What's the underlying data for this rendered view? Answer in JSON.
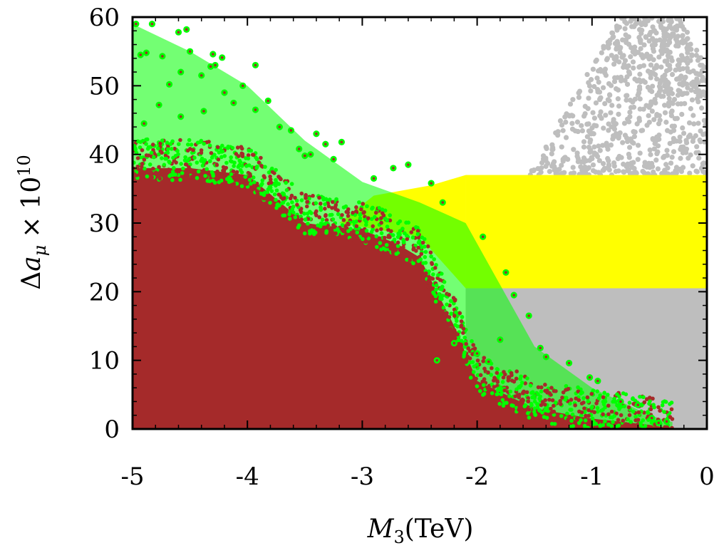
{
  "chart_data": {
    "type": "scatter",
    "title": "",
    "xlabel": {
      "symbol": "M",
      "subscript": "3",
      "unit": "(TeV)"
    },
    "ylabel": {
      "prefix": "Δ",
      "symbol": "a",
      "subscript": "μ",
      "times": "×",
      "base": "10",
      "exponent": "10"
    },
    "xlim": [
      -5,
      0
    ],
    "ylim": [
      0,
      60
    ],
    "x_ticks": [
      -5,
      -4,
      -3,
      -2,
      -1,
      0
    ],
    "x_tick_labels": [
      "-5",
      "-4",
      "-3",
      "-2",
      "-1",
      "0"
    ],
    "y_ticks": [
      0,
      10,
      20,
      30,
      40,
      50,
      60
    ],
    "y_tick_labels": [
      "0",
      "10",
      "20",
      "30",
      "40",
      "50",
      "60"
    ],
    "grid": false,
    "legend": "none",
    "series": [
      {
        "name": "gray",
        "color": "#bebebe",
        "description_regions": [
          {
            "x_range": [
              -2.1,
              0
            ],
            "y_range": [
              0,
              20.5
            ]
          },
          {
            "x_center": -0.5,
            "y_range": [
              37,
              60
            ]
          }
        ]
      },
      {
        "name": "yellow",
        "color": "#ffff00",
        "description_regions": [
          {
            "x_range": [
              -2.1,
              0
            ],
            "y_range": [
              20.5,
              37
            ]
          }
        ]
      },
      {
        "name": "green",
        "color": "#00ff00",
        "upper_envelope": [
          [
            -5,
            59
          ],
          [
            -4.5,
            55
          ],
          [
            -4,
            50
          ],
          [
            -3.5,
            42
          ],
          [
            -3,
            36
          ],
          [
            -2.5,
            33
          ],
          [
            -2.1,
            30
          ],
          [
            -1.5,
            12
          ],
          [
            -1,
            6
          ],
          [
            -0.5,
            2
          ],
          [
            -0.3,
            1
          ]
        ]
      },
      {
        "name": "brown",
        "color": "#a52a2a",
        "upper_envelope": [
          [
            -5,
            38
          ],
          [
            -4.5,
            38
          ],
          [
            -4,
            37
          ],
          [
            -3.5,
            30
          ],
          [
            -3,
            29
          ],
          [
            -2.7,
            27
          ],
          [
            -2.5,
            25
          ],
          [
            -2.2,
            15
          ],
          [
            -2,
            7
          ],
          [
            -1.5,
            3
          ],
          [
            -1,
            1.5
          ],
          [
            -0.5,
            0.6
          ],
          [
            -0.35,
            0.2
          ]
        ]
      }
    ],
    "highlight_points": [
      [
        -4.97,
        59.0
      ],
      [
        -4.83,
        59.0
      ],
      [
        -4.6,
        57.8
      ],
      [
        -4.53,
        58.2
      ],
      [
        -4.93,
        54.5
      ],
      [
        -4.88,
        54.8
      ],
      [
        -4.74,
        54.3
      ],
      [
        -4.5,
        55.0
      ],
      [
        -4.3,
        54.6
      ],
      [
        -4.22,
        54.1
      ],
      [
        -4.28,
        53.0
      ],
      [
        -4.58,
        52.0
      ],
      [
        -4.68,
        50.2
      ],
      [
        -4.4,
        51.5
      ],
      [
        -4.32,
        52.8
      ],
      [
        -3.93,
        53.0
      ],
      [
        -4.2,
        49.0
      ],
      [
        -4.12,
        47.5
      ],
      [
        -4.04,
        50.0
      ],
      [
        -3.82,
        47.8
      ],
      [
        -3.93,
        46.5
      ],
      [
        -4.38,
        46.3
      ],
      [
        -4.58,
        45.5
      ],
      [
        -4.77,
        47.2
      ],
      [
        -4.9,
        44.5
      ],
      [
        -3.72,
        44.0
      ],
      [
        -3.62,
        43.5
      ],
      [
        -3.4,
        43.0
      ],
      [
        -3.55,
        40.8
      ],
      [
        -3.45,
        40.0
      ],
      [
        -3.32,
        41.5
      ],
      [
        -3.18,
        41.8
      ],
      [
        -3.25,
        39.3
      ],
      [
        -3.5,
        39.8
      ],
      [
        -2.73,
        38.0
      ],
      [
        -2.6,
        38.5
      ],
      [
        -2.9,
        36.5
      ],
      [
        -2.4,
        35.8
      ],
      [
        -2.3,
        33.0
      ],
      [
        -1.95,
        28.0
      ],
      [
        -1.75,
        22.8
      ],
      [
        -1.55,
        16.5
      ],
      [
        -1.68,
        19.5
      ],
      [
        -1.8,
        13.0
      ],
      [
        -1.45,
        11.8
      ],
      [
        -1.4,
        10.5
      ],
      [
        -1.2,
        9.6
      ],
      [
        -1.02,
        7.5
      ],
      [
        -0.95,
        7.0
      ],
      [
        -0.75,
        4.0
      ],
      [
        -0.6,
        3.5
      ],
      [
        -0.48,
        1.6
      ],
      [
        -1.9,
        9.8
      ],
      [
        -2.0,
        11.0
      ],
      [
        -2.2,
        12.5
      ],
      [
        -2.35,
        10.0
      ],
      [
        -0.35,
        1.1
      ],
      [
        -0.42,
        0.9
      ]
    ]
  }
}
